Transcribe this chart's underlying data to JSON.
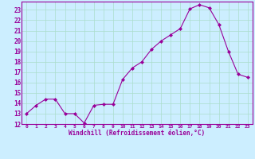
{
  "x": [
    0,
    1,
    2,
    3,
    4,
    5,
    6,
    7,
    8,
    9,
    10,
    11,
    12,
    13,
    14,
    15,
    16,
    17,
    18,
    19,
    20,
    21,
    22,
    23
  ],
  "y": [
    13.0,
    13.8,
    14.4,
    14.4,
    13.0,
    13.0,
    12.1,
    13.8,
    13.9,
    13.9,
    16.3,
    17.4,
    18.0,
    19.2,
    20.0,
    20.6,
    21.2,
    23.1,
    23.5,
    23.2,
    21.6,
    19.0,
    16.8,
    16.5
  ],
  "line_color": "#990099",
  "marker": "D",
  "marker_size": 2.0,
  "xlabel": "Windchill (Refroidissement éolien,°C)",
  "xlabel_color": "#990099",
  "bg_color": "#cceeff",
  "grid_color": "#aaddcc",
  "tick_color": "#990099",
  "spine_color": "#990099",
  "ylim": [
    12,
    23.8
  ],
  "xlim": [
    -0.5,
    23.5
  ],
  "yticks": [
    12,
    13,
    14,
    15,
    16,
    17,
    18,
    19,
    20,
    21,
    22,
    23
  ],
  "xticks": [
    0,
    1,
    2,
    3,
    4,
    5,
    6,
    7,
    8,
    9,
    10,
    11,
    12,
    13,
    14,
    15,
    16,
    17,
    18,
    19,
    20,
    21,
    22,
    23
  ],
  "figsize": [
    3.2,
    2.0
  ],
  "dpi": 100
}
